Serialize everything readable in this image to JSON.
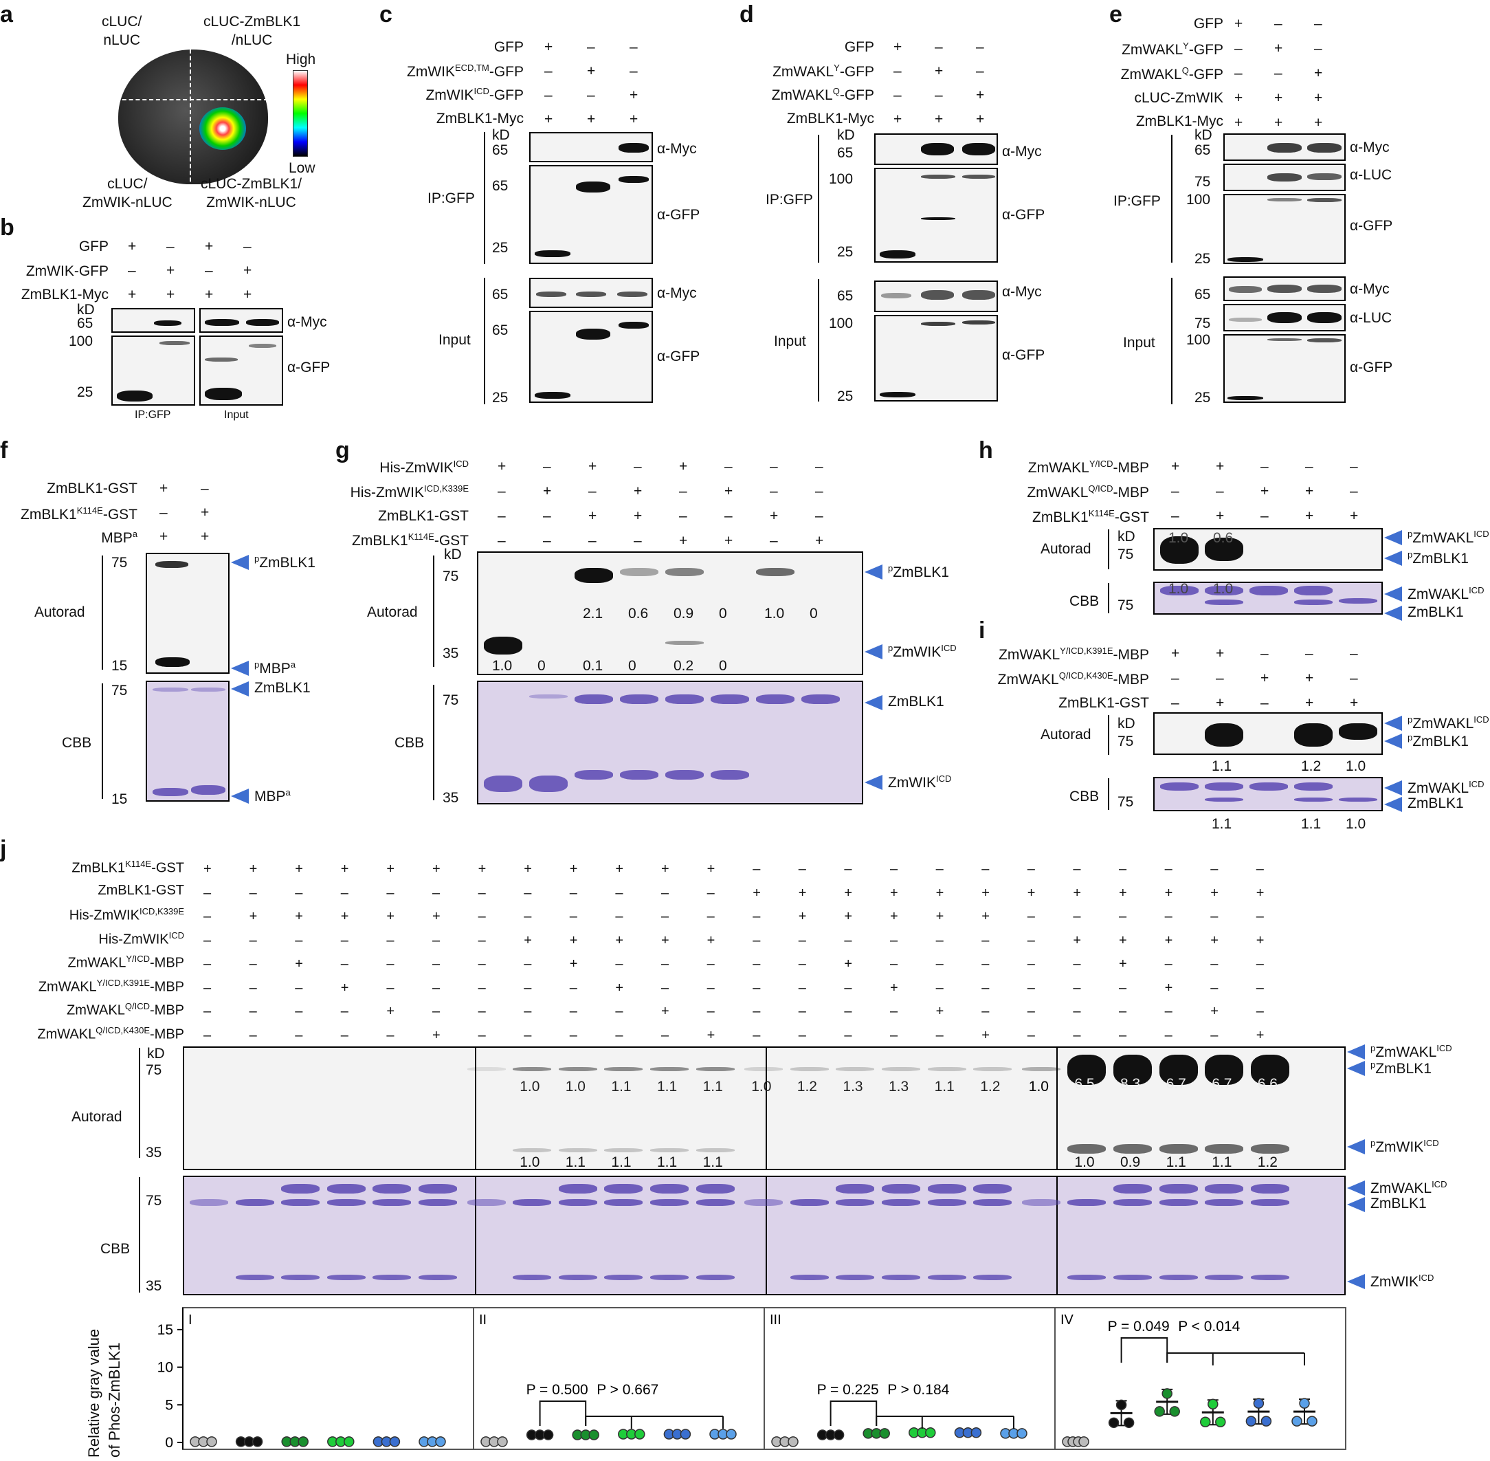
{
  "panel_letters": [
    "a",
    "b",
    "c",
    "d",
    "e",
    "f",
    "g",
    "h",
    "i",
    "j"
  ],
  "a": {
    "labels": [
      "cLUC/\nnLUC",
      "cLUC-ZmBLK1\n/nLUC",
      "cLUC/\nZmWIK-nLUC",
      "cLUC-ZmBLK1/\nZmWIK-nLUC"
    ],
    "scale_high": "High",
    "scale_low": "Low"
  },
  "b": {
    "rows": [
      "GFP",
      "ZmWIK-GFP",
      "ZmBLK1-Myc"
    ],
    "signs": [
      [
        "+",
        "–",
        "+",
        "–"
      ],
      [
        "–",
        "+",
        "–",
        "+"
      ],
      [
        "+",
        "+",
        "+",
        "+"
      ]
    ],
    "kd": "kD",
    "mw": [
      "65",
      "100",
      "25"
    ],
    "ab": [
      "α-Myc",
      "α-GFP"
    ],
    "groups": [
      "IP:GFP",
      "Input"
    ]
  },
  "c": {
    "rows": [
      "GFP",
      "ZmWIK",
      "ECD,TM",
      "-GFP",
      "ZmWIK",
      "ICD",
      "-GFP",
      "ZmBLK1-Myc"
    ],
    "signs": [
      [
        "+",
        "–",
        "–"
      ],
      [
        "–",
        "+",
        "–"
      ],
      [
        "–",
        "–",
        "+"
      ],
      [
        "+",
        "+",
        "+"
      ]
    ],
    "kd": "kD",
    "mw": [
      "65",
      "65",
      "25",
      "65",
      "65",
      "25"
    ],
    "ab": [
      "α-Myc",
      "α-GFP",
      "α-Myc",
      "α-GFP"
    ],
    "groups": [
      "IP:GFP",
      "Input"
    ]
  },
  "d": {
    "rows": [
      "GFP",
      "ZmWAKL",
      "Y",
      "-GFP",
      "ZmWAKL",
      "Q",
      "-GFP",
      "ZmBLK1-Myc"
    ],
    "signs": [
      [
        "+",
        "–",
        "–"
      ],
      [
        "–",
        "+",
        "–"
      ],
      [
        "–",
        "–",
        "+"
      ],
      [
        "+",
        "+",
        "+"
      ]
    ],
    "kd": "kD",
    "mw": [
      "65",
      "100",
      "25",
      "65",
      "100",
      "25"
    ],
    "ab": [
      "α-Myc",
      "α-GFP",
      "α-Myc",
      "α-GFP"
    ],
    "groups": [
      "IP:GFP",
      "Input"
    ]
  },
  "e": {
    "rows": [
      "GFP",
      "ZmWAKL",
      "Y",
      "-GFP",
      "ZmWAKL",
      "Q",
      "-GFP",
      "cLUC-ZmWIK",
      "ZmBLK1-Myc"
    ],
    "signs": [
      [
        "+",
        "–",
        "–"
      ],
      [
        "–",
        "+",
        "–"
      ],
      [
        "–",
        "–",
        "+"
      ],
      [
        "+",
        "+",
        "+"
      ],
      [
        "+",
        "+",
        "+"
      ]
    ],
    "kd": "kD",
    "mw": [
      "65",
      "75",
      "100",
      "25",
      "65",
      "75",
      "100",
      "25"
    ],
    "ab": [
      "α-Myc",
      "α-LUC",
      "α-GFP",
      "α-Myc",
      "α-LUC",
      "α-GFP"
    ],
    "groups": [
      "IP:GFP",
      "Input"
    ]
  },
  "f": {
    "rows": [
      "ZmBLK1-GST",
      "ZmBLK1",
      "K114E",
      "-GST",
      "MBP",
      "a"
    ],
    "signs": [
      [
        "+",
        "–"
      ],
      [
        "–",
        "+"
      ],
      [
        "+",
        "+"
      ]
    ],
    "mw": [
      "75",
      "15",
      "75",
      "15"
    ],
    "groups": [
      "Autorad",
      "CBB"
    ],
    "arrows": [
      "ZmBLK1",
      "MBP",
      "ZmBLK1",
      "MBP"
    ],
    "arrow_sup": [
      "p",
      "p",
      "",
      ""
    ],
    "arrow_sup2": [
      "",
      "a",
      "",
      "a"
    ]
  },
  "g": {
    "rows": [
      "His-ZmWIK",
      "ICD",
      "His-ZmWIK",
      "ICD,K339E",
      "ZmBLK1-GST",
      "ZmBLK1",
      "K114E",
      "-GST"
    ],
    "signs": [
      [
        "+",
        "–",
        "+",
        "–",
        "+",
        "–",
        "–",
        "–"
      ],
      [
        "–",
        "+",
        "–",
        "+",
        "–",
        "+",
        "–",
        "–"
      ],
      [
        "–",
        "–",
        "+",
        "+",
        "–",
        "–",
        "+",
        "–"
      ],
      [
        "–",
        "–",
        "–",
        "–",
        "+",
        "+",
        "–",
        "+"
      ]
    ],
    "kd": "kD",
    "mw": [
      "75",
      "35",
      "75",
      "35"
    ],
    "groups": [
      "Autorad",
      "CBB"
    ],
    "values_blk": [
      "2.1",
      "0.6",
      "0.9",
      "0",
      "1.0",
      "0"
    ],
    "values_wik": [
      "1.0",
      "0",
      "0.1",
      "0",
      "0.2",
      "0"
    ],
    "arrows": [
      "ZmBLK1",
      "ZmWIK",
      "ZmBLK1",
      "ZmWIK"
    ],
    "arrow_sup": [
      "p",
      "p",
      "",
      ""
    ],
    "arrow_sup2": [
      "",
      "ICD",
      "",
      "ICD"
    ]
  },
  "h": {
    "rows": [
      "ZmWAKL",
      "Y/ICD",
      "-MBP",
      "ZmWAKL",
      "Q/ICD",
      "-MBP",
      "ZmBLK1",
      "K114E",
      "-GST"
    ],
    "signs": [
      [
        "+",
        "+",
        "–",
        "–",
        "–"
      ],
      [
        "–",
        "–",
        "+",
        "+",
        "–"
      ],
      [
        "–",
        "+",
        "–",
        "+",
        "+"
      ]
    ],
    "kd": "kD",
    "mw": [
      "75",
      "75"
    ],
    "groups": [
      "Autorad",
      "CBB"
    ],
    "values_auto": [
      "1.0",
      "0.6"
    ],
    "values_cbb": [
      "1.0",
      "1.0"
    ],
    "arrows": [
      "ZmWAKL",
      "ZmBLK1",
      "ZmWAKL",
      "ZmBLK1"
    ],
    "arrow_sup": [
      "p",
      "p",
      "",
      ""
    ],
    "arrow_sup2": [
      "ICD",
      "",
      "ICD",
      ""
    ]
  },
  "i": {
    "rows": [
      "ZmWAKL",
      "Y/ICD,K391E",
      "-MBP",
      "ZmWAKL",
      "Q/ICD,K430E",
      "-MBP",
      "ZmBLK1-GST"
    ],
    "signs": [
      [
        "+",
        "+",
        "–",
        "–",
        "–"
      ],
      [
        "–",
        "–",
        "+",
        "+",
        "–"
      ],
      [
        "–",
        "+",
        "–",
        "+",
        "+"
      ]
    ],
    "kd": "kD",
    "mw": [
      "75",
      "75"
    ],
    "groups": [
      "Autorad",
      "CBB"
    ],
    "values_auto": [
      "1.1",
      "1.2",
      "1.0"
    ],
    "values_cbb": [
      "1.1",
      "1.1",
      "1.0"
    ],
    "arrows": [
      "ZmWAKL",
      "ZmBLK1",
      "ZmWAKL",
      "ZmBLK1"
    ],
    "arrow_sup": [
      "p",
      "p",
      "",
      ""
    ],
    "arrow_sup2": [
      "ICD",
      "",
      "ICD",
      ""
    ]
  },
  "j": {
    "rows": [
      "ZmBLK1",
      "K114E",
      "-GST",
      "ZmBLK1-GST",
      "His-ZmWIK",
      "ICD,K339E",
      "His-ZmWIK",
      "ICD",
      "ZmWAKL",
      "Y/ICD",
      "-MBP",
      "ZmWAKL",
      "Y/ICD,K391E",
      "-MBP",
      "ZmWAKL",
      "Q/ICD",
      "-MBP",
      "ZmWAKL",
      "Q/ICD,K430E",
      "-MBP"
    ],
    "signs": [
      [
        "+",
        "+",
        "+",
        "+",
        "+",
        "+",
        "+",
        "+",
        "+",
        "+",
        "+",
        "+",
        "–",
        "–",
        "–",
        "–",
        "–",
        "–",
        "–",
        "–",
        "–",
        "–",
        "–",
        "–"
      ],
      [
        "–",
        "–",
        "–",
        "–",
        "–",
        "–",
        "–",
        "–",
        "–",
        "–",
        "–",
        "–",
        "+",
        "+",
        "+",
        "+",
        "+",
        "+",
        "+",
        "+",
        "+",
        "+",
        "+",
        "+"
      ],
      [
        "–",
        "+",
        "+",
        "+",
        "+",
        "+",
        "–",
        "–",
        "–",
        "–",
        "–",
        "–",
        "–",
        "+",
        "+",
        "+",
        "+",
        "+",
        "–",
        "–",
        "–",
        "–",
        "–",
        "–"
      ],
      [
        "–",
        "–",
        "–",
        "–",
        "–",
        "–",
        "–",
        "+",
        "+",
        "+",
        "+",
        "+",
        "–",
        "–",
        "–",
        "–",
        "–",
        "–",
        "–",
        "+",
        "+",
        "+",
        "+",
        "+"
      ],
      [
        "–",
        "–",
        "+",
        "–",
        "–",
        "–",
        "–",
        "–",
        "+",
        "–",
        "–",
        "–",
        "–",
        "–",
        "+",
        "–",
        "–",
        "–",
        "–",
        "–",
        "+",
        "–",
        "–",
        "–"
      ],
      [
        "–",
        "–",
        "–",
        "+",
        "–",
        "–",
        "–",
        "–",
        "–",
        "+",
        "–",
        "–",
        "–",
        "–",
        "–",
        "+",
        "–",
        "–",
        "–",
        "–",
        "–",
        "+",
        "–",
        "–"
      ],
      [
        "–",
        "–",
        "–",
        "–",
        "+",
        "–",
        "–",
        "–",
        "–",
        "–",
        "+",
        "–",
        "–",
        "–",
        "–",
        "–",
        "+",
        "–",
        "–",
        "–",
        "–",
        "–",
        "+",
        "–"
      ],
      [
        "–",
        "–",
        "–",
        "–",
        "–",
        "+",
        "–",
        "–",
        "–",
        "–",
        "–",
        "+",
        "–",
        "–",
        "–",
        "–",
        "–",
        "+",
        "–",
        "–",
        "–",
        "–",
        "–",
        "+"
      ]
    ],
    "kd": "kD",
    "mw": [
      "75",
      "35",
      "75",
      "35"
    ],
    "groups": [
      "Autorad",
      "CBB"
    ],
    "values_blk": [
      "",
      "1.0",
      "1.0",
      "1.1",
      "1.1",
      "1.1",
      "1.0",
      "1.2",
      "1.3",
      "1.3",
      "1.1",
      "1.2",
      "1.0",
      "6.5",
      "8.3",
      "6.7",
      "6.7",
      "6.6"
    ],
    "values_wik": [
      "1.0",
      "1.1",
      "1.1",
      "1.1",
      "1.1",
      "1.0",
      "0.9",
      "1.1",
      "1.1",
      "1.2"
    ],
    "arrows": [
      "ZmWAKL",
      "ZmBLK1",
      "ZmWIK",
      "ZmWAKL",
      "ZmBLK1",
      "ZmWIK"
    ],
    "arrow_sup": [
      "p",
      "p",
      "p",
      "",
      "",
      ""
    ],
    "arrow_sup2": [
      "ICD",
      "",
      "ICD",
      "ICD",
      "",
      "ICD"
    ],
    "plot": {
      "ylabel1": "Relative gray value",
      "ylabel2": "of Phos-ZmBLK1",
      "yticks": [
        "0",
        "5",
        "10",
        "15"
      ],
      "sections": [
        "I",
        "II",
        "III",
        "IV"
      ],
      "stats": [
        {
          "p1": "P = 0.500",
          "p2": "P > 0.667"
        },
        {
          "p1": "P = 0.225",
          "p2": "P > 0.184"
        },
        {
          "p1": "P = 0.049",
          "p2": "P < 0.014"
        }
      ]
    }
  },
  "chart_data": {
    "type": "scatter",
    "ylabel": "Relative gray value of Phos-ZmBLK1",
    "ylim": [
      0,
      17
    ],
    "series": [
      {
        "name": "I",
        "values": [
          0.1,
          0.1,
          0.1,
          0.1,
          0.1,
          0.1
        ]
      },
      {
        "name": "II",
        "values": [
          0.1,
          1.0,
          1.0,
          1.1,
          1.1,
          1.1
        ]
      },
      {
        "name": "III",
        "values": [
          0.1,
          1.0,
          1.2,
          1.3,
          1.3,
          1.2
        ]
      },
      {
        "name": "IV",
        "values": [
          0.1,
          3.9,
          5.4,
          4.0,
          4.1,
          4.1
        ]
      }
    ]
  }
}
